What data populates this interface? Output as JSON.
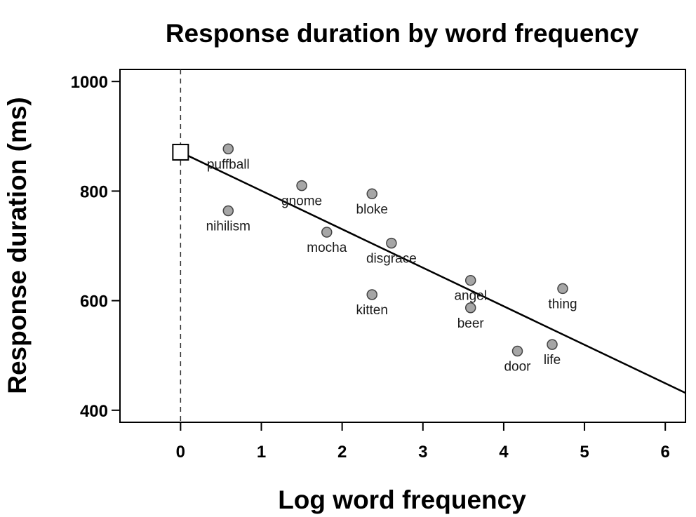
{
  "chart_data": {
    "type": "scatter",
    "title": "Response duration by word frequency",
    "xlabel": "Log word frequency",
    "ylabel": "Response duration (ms)",
    "xlim": [
      -0.75,
      6.25
    ],
    "ylim": [
      378,
      1022
    ],
    "x_ticks": [
      0,
      1,
      2,
      3,
      4,
      5,
      6
    ],
    "y_ticks": [
      400,
      600,
      800,
      1000
    ],
    "grid": false,
    "legend": "none",
    "reference_line": {
      "type": "vertical",
      "x": 0,
      "style": "dashed"
    },
    "intercept_marker": {
      "x": 0,
      "y": 871,
      "shape": "square"
    },
    "regression_line": {
      "intercept": 871,
      "slope": -70.3
    },
    "point_color": "#a6a6a6",
    "line_color": "#000000",
    "points": [
      {
        "label": "puffball",
        "x": 0.59,
        "y": 877
      },
      {
        "label": "nihilism",
        "x": 0.59,
        "y": 764
      },
      {
        "label": "gnome",
        "x": 1.5,
        "y": 810
      },
      {
        "label": "mocha",
        "x": 1.81,
        "y": 725
      },
      {
        "label": "bloke",
        "x": 2.37,
        "y": 795
      },
      {
        "label": "disgrace",
        "x": 2.61,
        "y": 705
      },
      {
        "label": "kitten",
        "x": 2.37,
        "y": 611
      },
      {
        "label": "angel",
        "x": 3.59,
        "y": 637
      },
      {
        "label": "beer",
        "x": 3.59,
        "y": 587
      },
      {
        "label": "thing",
        "x": 4.73,
        "y": 622
      },
      {
        "label": "door",
        "x": 4.17,
        "y": 508
      },
      {
        "label": "life",
        "x": 4.6,
        "y": 520
      }
    ]
  }
}
